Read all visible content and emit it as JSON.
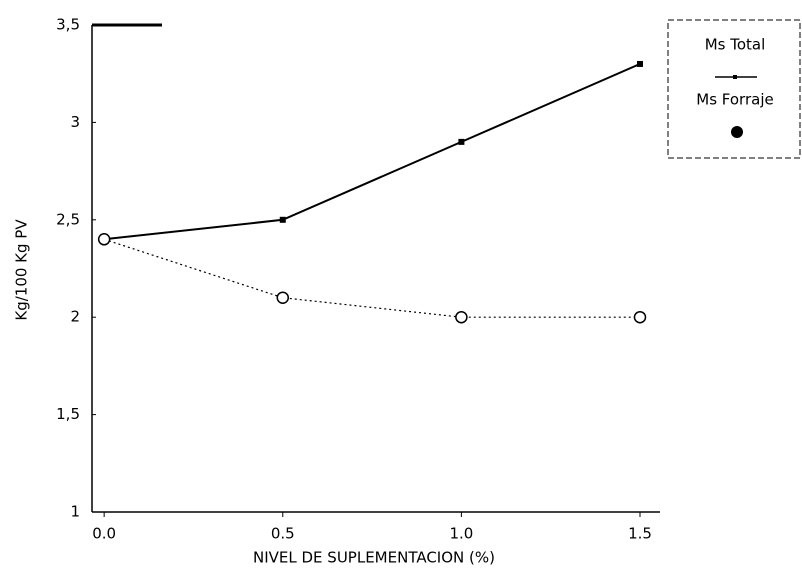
{
  "chart_data": {
    "type": "line",
    "x_label": "NIVEL DE SUPLEMENTACION (%)",
    "y_label": "Kg/100 Kg PV",
    "x": [
      0,
      0.5,
      1,
      1.5
    ],
    "xlim": [
      -0.034,
      1.556
    ],
    "xticks": [
      {
        "value": 0,
        "label": "0.0"
      },
      {
        "value": 0.5,
        "label": "0.5"
      },
      {
        "value": 1,
        "label": "1.0"
      },
      {
        "value": 1.5,
        "label": "1.5"
      }
    ],
    "ylim": [
      1,
      3.5
    ],
    "yticks": [
      {
        "value": 1,
        "label": "1"
      },
      {
        "value": 1.5,
        "label": "1,5"
      },
      {
        "value": 2,
        "label": "2"
      },
      {
        "value": 2.5,
        "label": "2,5"
      },
      {
        "value": 3,
        "label": "3"
      },
      {
        "value": 3.5,
        "label": "3,5"
      }
    ],
    "series": [
      {
        "name": "Ms Total",
        "color": "#000000",
        "values": [
          2.4,
          2.5,
          2.9,
          3.3
        ]
      },
      {
        "name": "Ms Forraje",
        "color": "#000000",
        "values": [
          2.4,
          2.1,
          2.0,
          2.0
        ]
      }
    ]
  }
}
